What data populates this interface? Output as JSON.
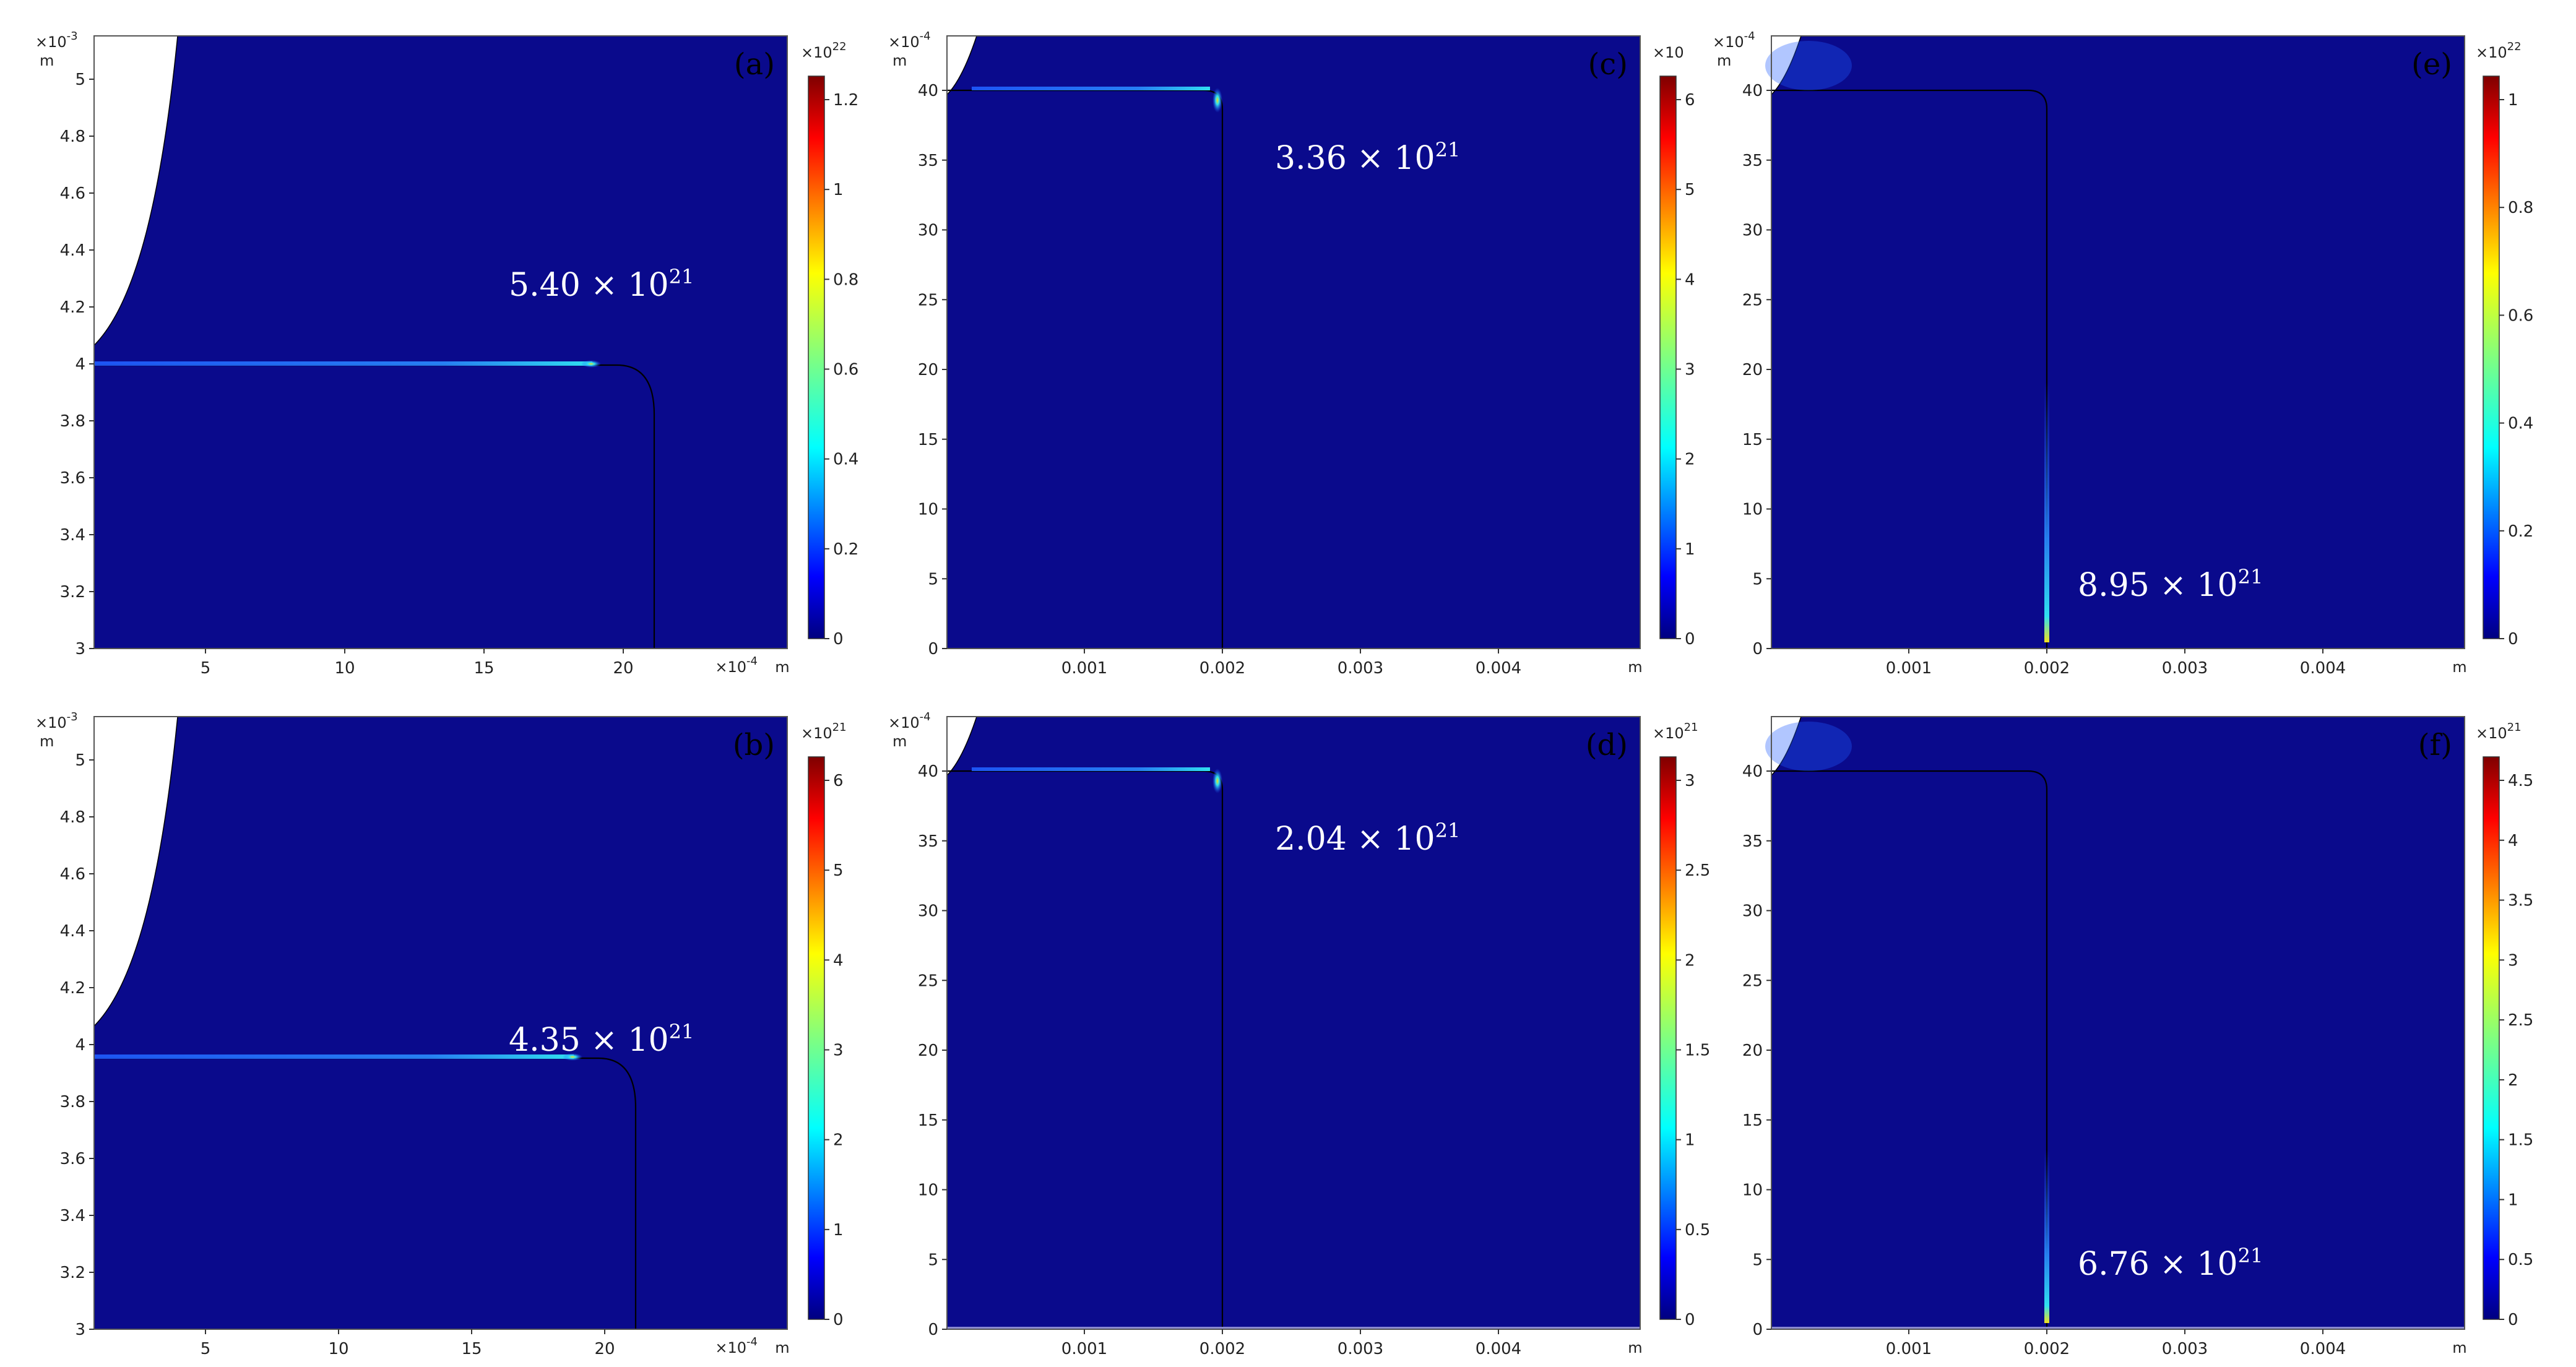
{
  "figure": {
    "panels": [
      {
        "id": "a",
        "label": "(a)",
        "annotation": {
          "mantissa": "5.40 × 10",
          "exp": "21"
        },
        "y_exponent": "×10",
        "y_exponent_power": "-3",
        "y_unit": "m",
        "x_exponent": "×10",
        "x_exponent_power": "-4",
        "x_unit": "m",
        "y_ticks": [
          "5",
          "4.8",
          "4.6",
          "4.4",
          "4.2",
          "4",
          "3.8",
          "3.6",
          "3.4",
          "3.2",
          "3"
        ],
        "x_ticks": [
          "5",
          "10",
          "15",
          "20"
        ],
        "colorbar_exponent": "×10",
        "colorbar_exponent_power": "22",
        "colorbar_ticks": [
          "1.2",
          "1",
          "0.8",
          "0.6",
          "0.4",
          "0.2",
          "0"
        ]
      },
      {
        "id": "b",
        "label": "(b)",
        "annotation": {
          "mantissa": "4.35 × 10",
          "exp": "21"
        },
        "y_exponent": "×10",
        "y_exponent_power": "-3",
        "y_unit": "m",
        "x_exponent": "×10",
        "x_exponent_power": "-4",
        "x_unit": "m",
        "y_ticks": [
          "5",
          "4.8",
          "4.6",
          "4.4",
          "4.2",
          "4",
          "3.8",
          "3.6",
          "3.4",
          "3.2",
          "3"
        ],
        "x_ticks": [
          "5",
          "10",
          "15",
          "20"
        ],
        "colorbar_exponent": "×10",
        "colorbar_exponent_power": "21",
        "colorbar_ticks": [
          "6",
          "5",
          "4",
          "3",
          "2",
          "1",
          "0"
        ]
      },
      {
        "id": "c",
        "label": "(c)",
        "annotation": {
          "mantissa": "3.36 × 10",
          "exp": "21"
        },
        "y_exponent": "×10",
        "y_exponent_power": "-4",
        "y_unit": "m",
        "x_exponent": "",
        "x_exponent_power": "",
        "x_unit": "m",
        "y_ticks": [
          "40",
          "35",
          "30",
          "25",
          "20",
          "15",
          "10",
          "5",
          "0"
        ],
        "x_ticks": [
          "0.001",
          "0.002",
          "0.003",
          "0.004"
        ],
        "colorbar_exponent": "×10",
        "colorbar_exponent_power": "",
        "colorbar_ticks": [
          "6",
          "5",
          "4",
          "3",
          "2",
          "1",
          "0"
        ]
      },
      {
        "id": "d",
        "label": "(d)",
        "annotation": {
          "mantissa": "2.04 × 10",
          "exp": "21"
        },
        "y_exponent": "×10",
        "y_exponent_power": "-4",
        "y_unit": "m",
        "x_exponent": "",
        "x_exponent_power": "",
        "x_unit": "m",
        "y_ticks": [
          "40",
          "35",
          "30",
          "25",
          "20",
          "15",
          "10",
          "5",
          "0"
        ],
        "x_ticks": [
          "0.001",
          "0.002",
          "0.003",
          "0.004"
        ],
        "colorbar_exponent": "×10",
        "colorbar_exponent_power": "21",
        "colorbar_ticks": [
          "3",
          "2.5",
          "2",
          "1.5",
          "1",
          "0.5",
          "0"
        ]
      },
      {
        "id": "e",
        "label": "(e)",
        "annotation": {
          "mantissa": "8.95 × 10",
          "exp": "21"
        },
        "y_exponent": "×10",
        "y_exponent_power": "-4",
        "y_unit": "m",
        "x_exponent": "",
        "x_exponent_power": "",
        "x_unit": "m",
        "y_ticks": [
          "40",
          "35",
          "30",
          "25",
          "20",
          "15",
          "10",
          "5",
          "0"
        ],
        "x_ticks": [
          "0.001",
          "0.002",
          "0.003",
          "0.004"
        ],
        "colorbar_exponent": "×10",
        "colorbar_exponent_power": "22",
        "colorbar_ticks": [
          "1",
          "0.8",
          "0.6",
          "0.4",
          "0.2",
          "0"
        ]
      },
      {
        "id": "f",
        "label": "(f)",
        "annotation": {
          "mantissa": "6.76 × 10",
          "exp": "21"
        },
        "y_exponent": "",
        "y_exponent_power": "-4",
        "y_unit": "",
        "x_exponent": "",
        "x_exponent_power": "",
        "x_unit": "m",
        "y_ticks": [
          "40",
          "35",
          "30",
          "25",
          "20",
          "15",
          "10",
          "5",
          "0"
        ],
        "x_ticks": [
          "0.001",
          "0.002",
          "0.003",
          "0.004"
        ],
        "colorbar_exponent": "×10",
        "colorbar_exponent_power": "21",
        "colorbar_ticks": [
          "4.5",
          "4",
          "3.5",
          "3",
          "2.5",
          "2",
          "1.5",
          "1",
          "0.5",
          "0"
        ]
      }
    ],
    "colors": {
      "field_background": "#0a0a8c",
      "contour_line": "#000000",
      "hotspot_low": "#2f7cff",
      "hotspot_mid": "#22d8e8",
      "hotspot_high": "#f0e020"
    }
  }
}
